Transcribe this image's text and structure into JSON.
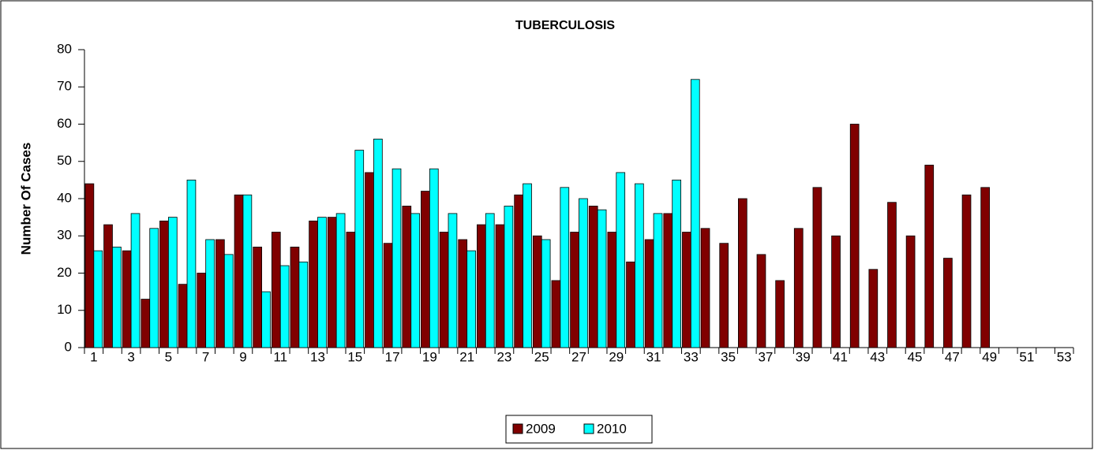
{
  "chart_data": {
    "type": "bar",
    "title": "TUBERCULOSIS",
    "y_label": "Number Of Cases",
    "categories": [
      1,
      null,
      3,
      null,
      5,
      null,
      7,
      null,
      9,
      null,
      11,
      null,
      13,
      null,
      15,
      null,
      17,
      null,
      19,
      null,
      21,
      null,
      23,
      null,
      25,
      null,
      27,
      null,
      29,
      null,
      31,
      null,
      33,
      null,
      35,
      null,
      37,
      null,
      39,
      null,
      41,
      null,
      43,
      null,
      45,
      null,
      47,
      null,
      49,
      null,
      51,
      null,
      53
    ],
    "series": [
      {
        "name": "2009",
        "color": "#800000",
        "values": [
          44,
          33,
          26,
          13,
          34,
          17,
          20,
          29,
          41,
          27,
          31,
          27,
          34,
          35,
          31,
          47,
          28,
          38,
          42,
          31,
          29,
          33,
          33,
          41,
          30,
          18,
          31,
          38,
          31,
          23,
          29,
          36,
          31,
          32,
          28,
          40,
          25,
          18,
          32,
          43,
          30,
          60,
          21,
          39,
          30,
          49,
          24,
          41,
          43,
          null,
          null,
          null,
          null
        ]
      },
      {
        "name": "2010",
        "color": "#00ffff",
        "values": [
          26,
          27,
          36,
          32,
          35,
          45,
          29,
          25,
          41,
          15,
          22,
          23,
          35,
          36,
          53,
          56,
          48,
          36,
          48,
          36,
          26,
          36,
          38,
          44,
          29,
          43,
          40,
          37,
          47,
          44,
          36,
          45,
          72,
          0,
          0,
          0,
          0,
          0,
          0,
          0,
          0,
          0,
          0,
          0,
          0,
          0,
          0,
          0,
          0,
          null,
          null,
          null,
          null
        ]
      }
    ],
    "ylim": [
      0,
      80
    ],
    "yticks": [
      0,
      10,
      20,
      30,
      40,
      50,
      60,
      70,
      80
    ],
    "legend": "bottom"
  }
}
